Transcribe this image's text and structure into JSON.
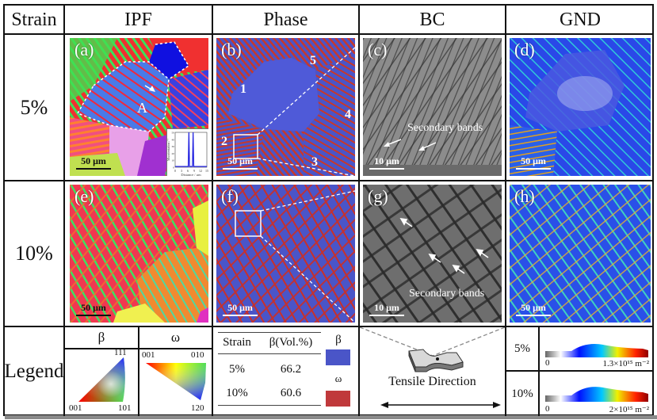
{
  "header": {
    "strain": "Strain",
    "ipf": "IPF",
    "phase": "Phase",
    "bc": "BC",
    "gnd": "GND"
  },
  "rows": [
    {
      "strain": "5%"
    },
    {
      "strain": "10%"
    }
  ],
  "panels": {
    "a": {
      "label": "(a)",
      "grain_label": "A",
      "scale": "50 μm",
      "inset": {
        "ylabel": "Misorientation / °",
        "xlabel": "Distance / μm",
        "xticks": [
          "0",
          "3",
          "6",
          "9",
          "12",
          "15"
        ],
        "yticks": [
          "0",
          "10",
          "20",
          "30",
          "40",
          "50"
        ],
        "peaks_at_um": [
          6.5,
          8.5
        ],
        "peak_value_deg": 50
      }
    },
    "b": {
      "label": "(b)",
      "scale": "50 μm",
      "regions": [
        "1",
        "2",
        "3",
        "4",
        "5"
      ]
    },
    "c": {
      "label": "(c)",
      "scale": "10 μm",
      "annotation": "Secondary bands"
    },
    "d": {
      "label": "(d)",
      "scale": "50 μm"
    },
    "e": {
      "label": "(e)",
      "scale": "50 μm"
    },
    "f": {
      "label": "(f)",
      "scale": "50 μm"
    },
    "g": {
      "label": "(g)",
      "scale": "10 μm",
      "annotation": "Secondary bands"
    },
    "h": {
      "label": "(h)",
      "scale": "50 μm"
    }
  },
  "legend": {
    "row_label": "Legend",
    "ipf": {
      "beta": {
        "title": "β",
        "corners": [
          "001",
          "101",
          "111"
        ]
      },
      "omega": {
        "title": "ω",
        "corners": [
          "001",
          "010",
          "120"
        ]
      }
    },
    "phase_table": {
      "headers": [
        "Strain",
        "β(Vol.%)"
      ],
      "rows": [
        {
          "strain": "5%",
          "beta_vol": "66.2"
        },
        {
          "strain": "10%",
          "beta_vol": "60.6"
        }
      ],
      "key": [
        {
          "name": "β",
          "color": "#4a55c8"
        },
        {
          "name": "ω",
          "color": "#c0393b"
        }
      ]
    },
    "bc": {
      "caption": "Tensile Direction"
    },
    "gnd": [
      {
        "strain": "5%",
        "min": "0",
        "max": "1.3×10¹⁵ m⁻²"
      },
      {
        "strain": "10%",
        "min": "0",
        "max": "2×10¹⁵ m⁻²"
      }
    ]
  },
  "colors": {
    "beta": "#4a55c8",
    "omega": "#c0393b",
    "ipf_red": "#f0283c",
    "ipf_green": "#3ce05a",
    "ipf_blue": "#4060ff"
  }
}
